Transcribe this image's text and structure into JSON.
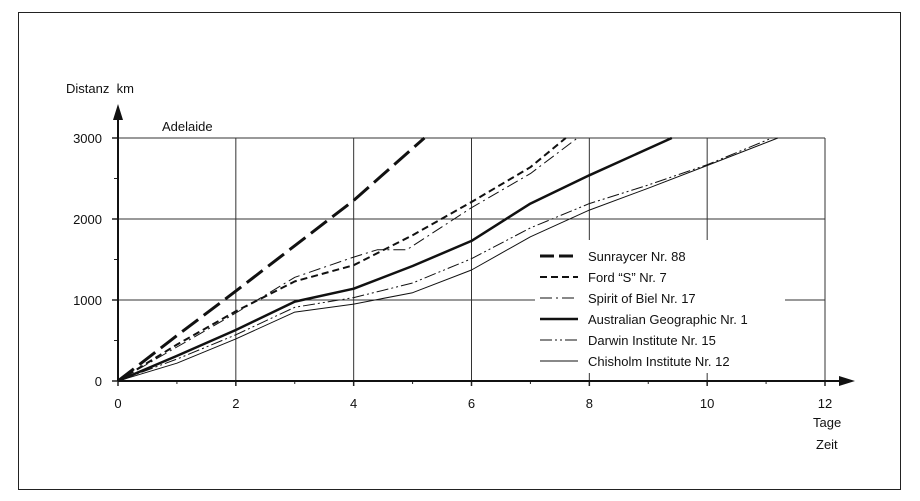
{
  "chart_data": {
    "type": "line",
    "ylabel": "Distanz  km",
    "xlabel_unit": "Tage",
    "xlabel": "Zeit",
    "destination_label": "Adelaide",
    "xlim": [
      0,
      12
    ],
    "ylim": [
      0,
      3000
    ],
    "x_ticks": [
      "0",
      "2",
      "4",
      "6",
      "8",
      "10",
      "12"
    ],
    "y_ticks": [
      "0",
      "1000",
      "2000",
      "3000"
    ],
    "grid": true,
    "legend_position": "right",
    "series": [
      {
        "name": "Sunraycer  Nr. 88",
        "style": "long-dash",
        "width": 3,
        "points": [
          [
            0,
            0
          ],
          [
            1,
            560
          ],
          [
            2,
            1110
          ],
          [
            3,
            1670
          ],
          [
            4,
            2230
          ],
          [
            5.2,
            3000
          ]
        ]
      },
      {
        "name": "Ford “S”  Nr. 7",
        "style": "short-dash",
        "width": 2,
        "points": [
          [
            0,
            0
          ],
          [
            1,
            450
          ],
          [
            2,
            860
          ],
          [
            3,
            1230
          ],
          [
            4,
            1430
          ],
          [
            5,
            1800
          ],
          [
            6,
            2210
          ],
          [
            7,
            2640
          ],
          [
            7.6,
            3000
          ]
        ]
      },
      {
        "name": "Spirit of Biel  Nr. 17",
        "style": "dash-dot",
        "width": 1,
        "points": [
          [
            0,
            0
          ],
          [
            1,
            420
          ],
          [
            2,
            840
          ],
          [
            3,
            1280
          ],
          [
            4,
            1530
          ],
          [
            4.4,
            1620
          ],
          [
            4.9,
            1620
          ],
          [
            6,
            2140
          ],
          [
            7,
            2560
          ],
          [
            7.8,
            3000
          ]
        ]
      },
      {
        "name": "Australian Geographic  Nr. 1",
        "style": "solid",
        "width": 2.5,
        "points": [
          [
            0,
            0
          ],
          [
            1,
            310
          ],
          [
            2,
            630
          ],
          [
            3,
            980
          ],
          [
            4,
            1140
          ],
          [
            5,
            1420
          ],
          [
            6,
            1730
          ],
          [
            7,
            2190
          ],
          [
            8,
            2540
          ],
          [
            9.4,
            3000
          ]
        ]
      },
      {
        "name": "Darwin Institute  Nr. 15",
        "style": "dash-dot-dot",
        "width": 1,
        "points": [
          [
            0,
            0
          ],
          [
            1,
            270
          ],
          [
            2,
            570
          ],
          [
            3,
            910
          ],
          [
            4,
            1030
          ],
          [
            5,
            1210
          ],
          [
            6,
            1510
          ],
          [
            7,
            1890
          ],
          [
            8,
            2190
          ],
          [
            9,
            2420
          ],
          [
            10,
            2670
          ],
          [
            11.1,
            3000
          ]
        ]
      },
      {
        "name": "Chisholm Institute  Nr. 12",
        "style": "solid",
        "width": 1,
        "points": [
          [
            0,
            0
          ],
          [
            1,
            220
          ],
          [
            2,
            520
          ],
          [
            3,
            850
          ],
          [
            4,
            950
          ],
          [
            5,
            1090
          ],
          [
            6,
            1370
          ],
          [
            7,
            1780
          ],
          [
            8,
            2110
          ],
          [
            9,
            2380
          ],
          [
            10,
            2660
          ],
          [
            11.2,
            3000
          ]
        ]
      }
    ]
  }
}
